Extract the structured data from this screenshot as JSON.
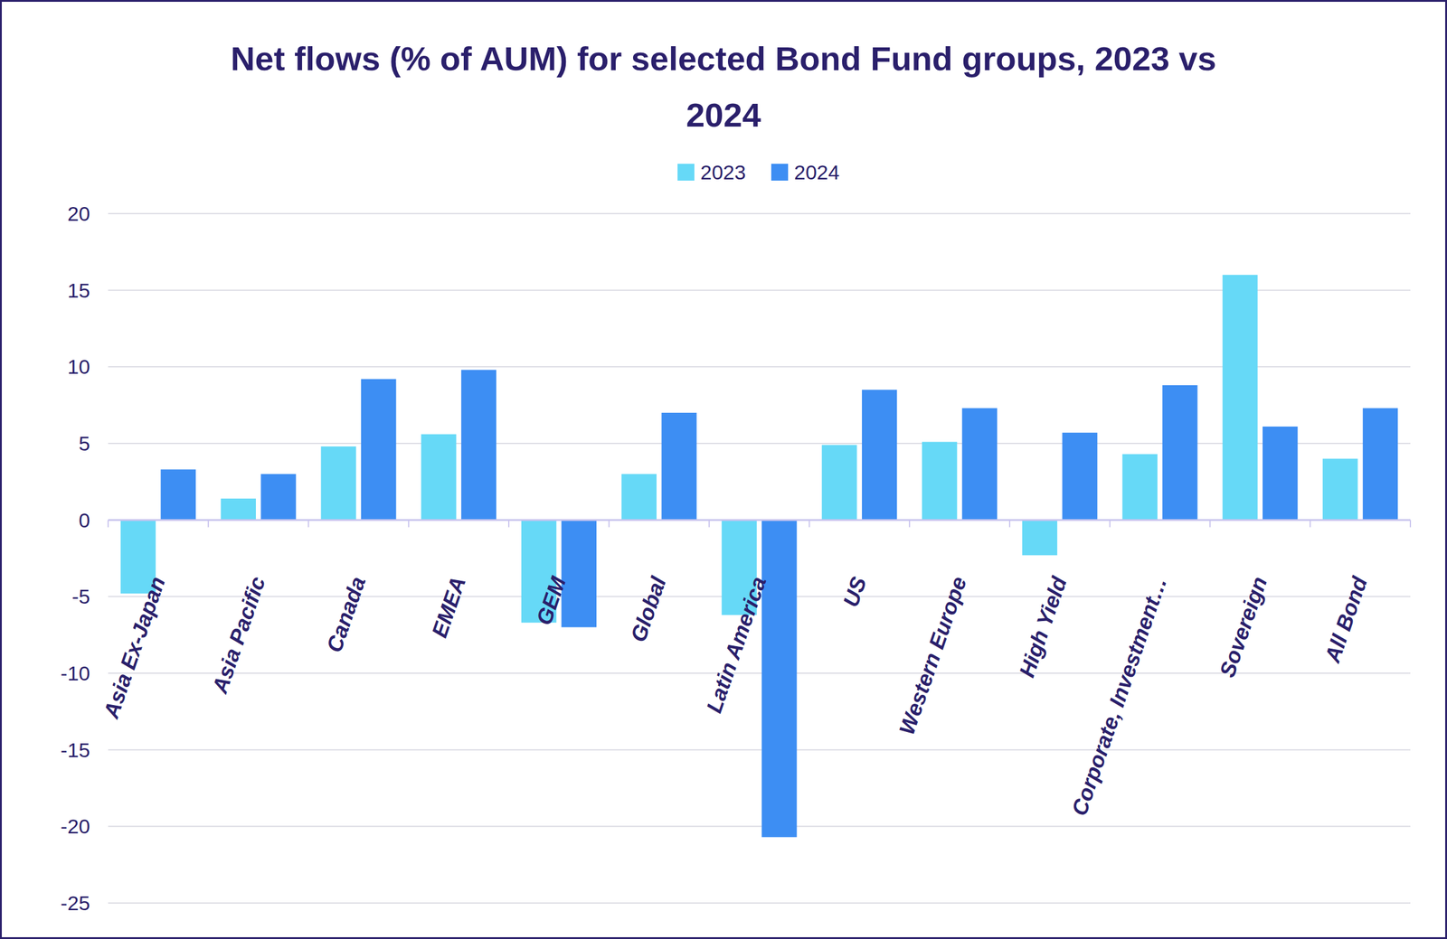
{
  "chart_data": {
    "type": "bar",
    "title": "Net flows (% of AUM) for selected Bond Fund groups, 2023 vs 2024",
    "categories": [
      "Asia Ex-Japan",
      "Asia Pacific",
      "Canada",
      "EMEA",
      "GEM",
      "Global",
      "Latin America",
      "US",
      "Western Europe",
      "High Yield",
      "Corporate, Investment…",
      "Sovereign",
      "All Bond"
    ],
    "series": [
      {
        "name": "2023",
        "color": "#66d9f7",
        "values": [
          -4.8,
          1.4,
          4.8,
          5.6,
          -6.7,
          3.0,
          -6.2,
          4.9,
          5.1,
          -2.3,
          4.3,
          16.0,
          4.0
        ]
      },
      {
        "name": "2024",
        "color": "#3d8ef3",
        "values": [
          3.3,
          3.0,
          9.2,
          9.8,
          -7.0,
          7.0,
          -20.7,
          8.5,
          7.3,
          5.7,
          8.8,
          6.1,
          7.3
        ]
      }
    ],
    "ylim": [
      -25,
      20
    ],
    "yticks": [
      -25,
      -20,
      -15,
      -10,
      -5,
      0,
      5,
      10,
      15,
      20
    ],
    "grid": true,
    "legend": "top"
  }
}
